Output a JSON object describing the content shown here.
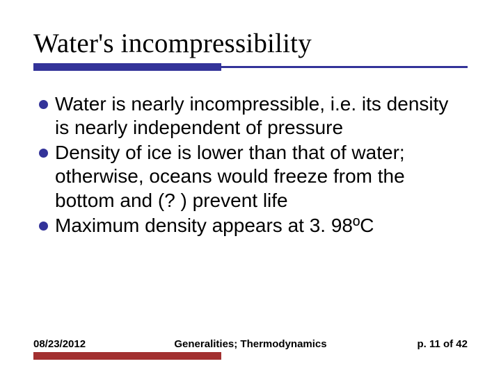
{
  "title": "Water's incompressibility",
  "title_fontsize": 39,
  "title_font": "Times New Roman",
  "colors": {
    "rule": "#333399",
    "bullet": "#333399",
    "footer_bar": "#a23030",
    "text": "#000000",
    "background": "#ffffff"
  },
  "bullets": [
    {
      "text": "Water is nearly incompressible, i.e. its density is nearly independent of pressure"
    },
    {
      "text": "Density of ice is lower than that of water; otherwise, oceans would freeze from the bottom and (? ) prevent life"
    },
    {
      "text": "Maximum density appears at 3. 98ºC"
    }
  ],
  "bullet_fontsize": 28,
  "footer": {
    "date": "08/23/2012",
    "center": "Generalities; Thermodynamics",
    "page": "p. 11 of 42",
    "fontsize": 15
  },
  "accent_bar_width": 270
}
